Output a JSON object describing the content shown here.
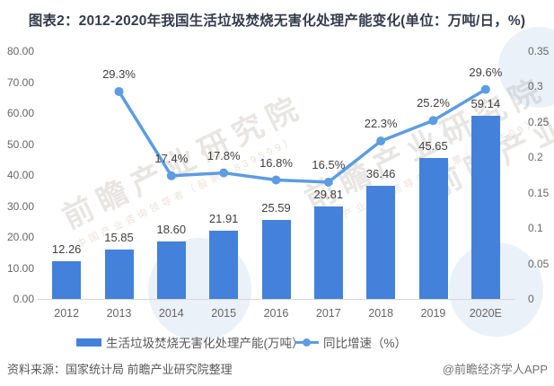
{
  "title": "图表2：2012-2020年我国生活垃圾焚烧无害化处理产能变化(单位：万吨/日，%)",
  "chart_data": {
    "type": "bar",
    "subtype": "bar-line-combo",
    "categories": [
      "2012",
      "2013",
      "2014",
      "2015",
      "2016",
      "2017",
      "2018",
      "2019",
      "2020E"
    ],
    "series": [
      {
        "name": "生活垃圾焚烧无害化处理产能(万吨）",
        "type": "bar",
        "axis": "left",
        "values": [
          12.26,
          15.85,
          18.6,
          21.91,
          25.59,
          29.81,
          36.46,
          45.65,
          59.14
        ],
        "labels": [
          "12.26",
          "15.85",
          "18.60",
          "21.91",
          "25.59",
          "29.81",
          "36.46",
          "45.65",
          "59.14"
        ]
      },
      {
        "name": "同比增速（%）",
        "type": "line",
        "axis": "right",
        "values": [
          null,
          0.293,
          0.174,
          0.178,
          0.168,
          0.165,
          0.223,
          0.252,
          0.296
        ],
        "labels": [
          null,
          "29.3%",
          "17.4%",
          "17.8%",
          "16.8%",
          "16.5%",
          "22.3%",
          "25.2%",
          "29.6%"
        ]
      }
    ],
    "left_axis": {
      "min": 0,
      "max": 80,
      "ticks": [
        "80.00",
        "70.00",
        "60.00",
        "50.00",
        "40.00",
        "30.00",
        "20.00",
        "10.00",
        "0.00"
      ]
    },
    "right_axis": {
      "min": 0,
      "max": 0.35,
      "ticks": [
        "0.35",
        "0.3",
        "0.25",
        "0.2",
        "0.15",
        "0.1",
        "0.05",
        "0"
      ]
    },
    "grid": false,
    "legend_position": "bottom"
  },
  "footer": {
    "source": "资料来源：国家统计局 前瞻产业研究院整理",
    "credit": "@前瞻经济学人APP"
  },
  "watermark": {
    "text": "前瞻产业研究院",
    "subtext": "中国产业咨询领导者（股票：839599）"
  },
  "colors": {
    "bar": "#4381db",
    "line": "#5c9ce3",
    "title": "#333b4c",
    "axis_text": "#666666",
    "label_text": "#404040",
    "footer_text": "#595959",
    "axis_line": "#d6d6d6"
  }
}
